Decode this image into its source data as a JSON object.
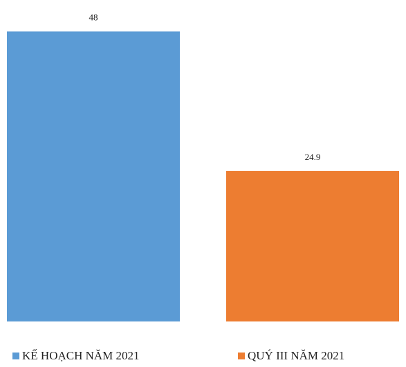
{
  "chart_data": {
    "type": "bar",
    "series": [
      {
        "name": "KẾ HOẠCH NĂM 2021",
        "color": "#5b9bd5",
        "values": [
          48
        ]
      },
      {
        "name": "QUÝ III NĂM 2021",
        "color": "#ed7d31",
        "values": [
          24.9
        ]
      }
    ],
    "ylim": [
      0,
      50
    ]
  }
}
